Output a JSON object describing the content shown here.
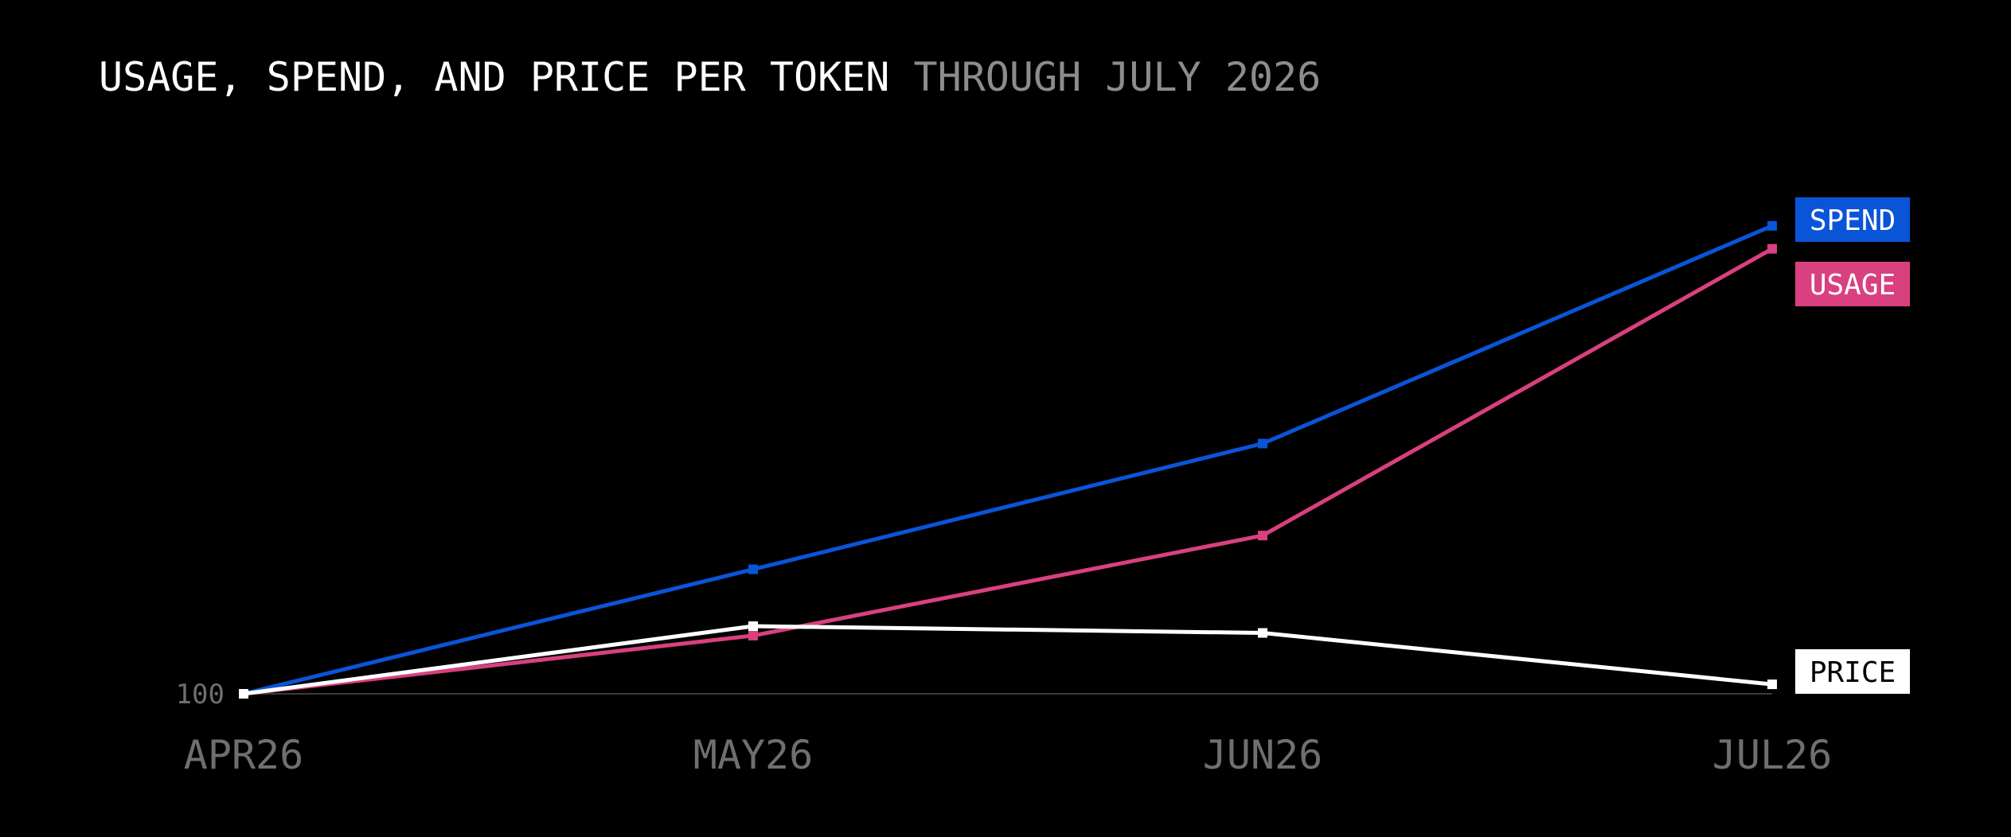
{
  "title": {
    "main": "USAGE, SPEND, AND PRICE PER TOKEN",
    "sub": "THROUGH JULY 2026"
  },
  "chart_data": {
    "type": "line",
    "x": [
      "APR26",
      "MAY26",
      "JUN26",
      "JUL26"
    ],
    "y_tick_labels": [
      "100"
    ],
    "baseline": 100,
    "ylim": [
      100,
      425
    ],
    "grid": false,
    "legend_placement": "right, at series end",
    "series": [
      {
        "name": "SPEND",
        "color": "#0a54d8",
        "values": [
          100,
          192,
          285,
          446
        ]
      },
      {
        "name": "USAGE",
        "color": "#d9407f",
        "values": [
          100,
          143,
          217,
          429
        ]
      },
      {
        "name": "PRICE",
        "color": "#ffffff",
        "values": [
          100,
          150,
          145,
          107
        ]
      }
    ]
  }
}
